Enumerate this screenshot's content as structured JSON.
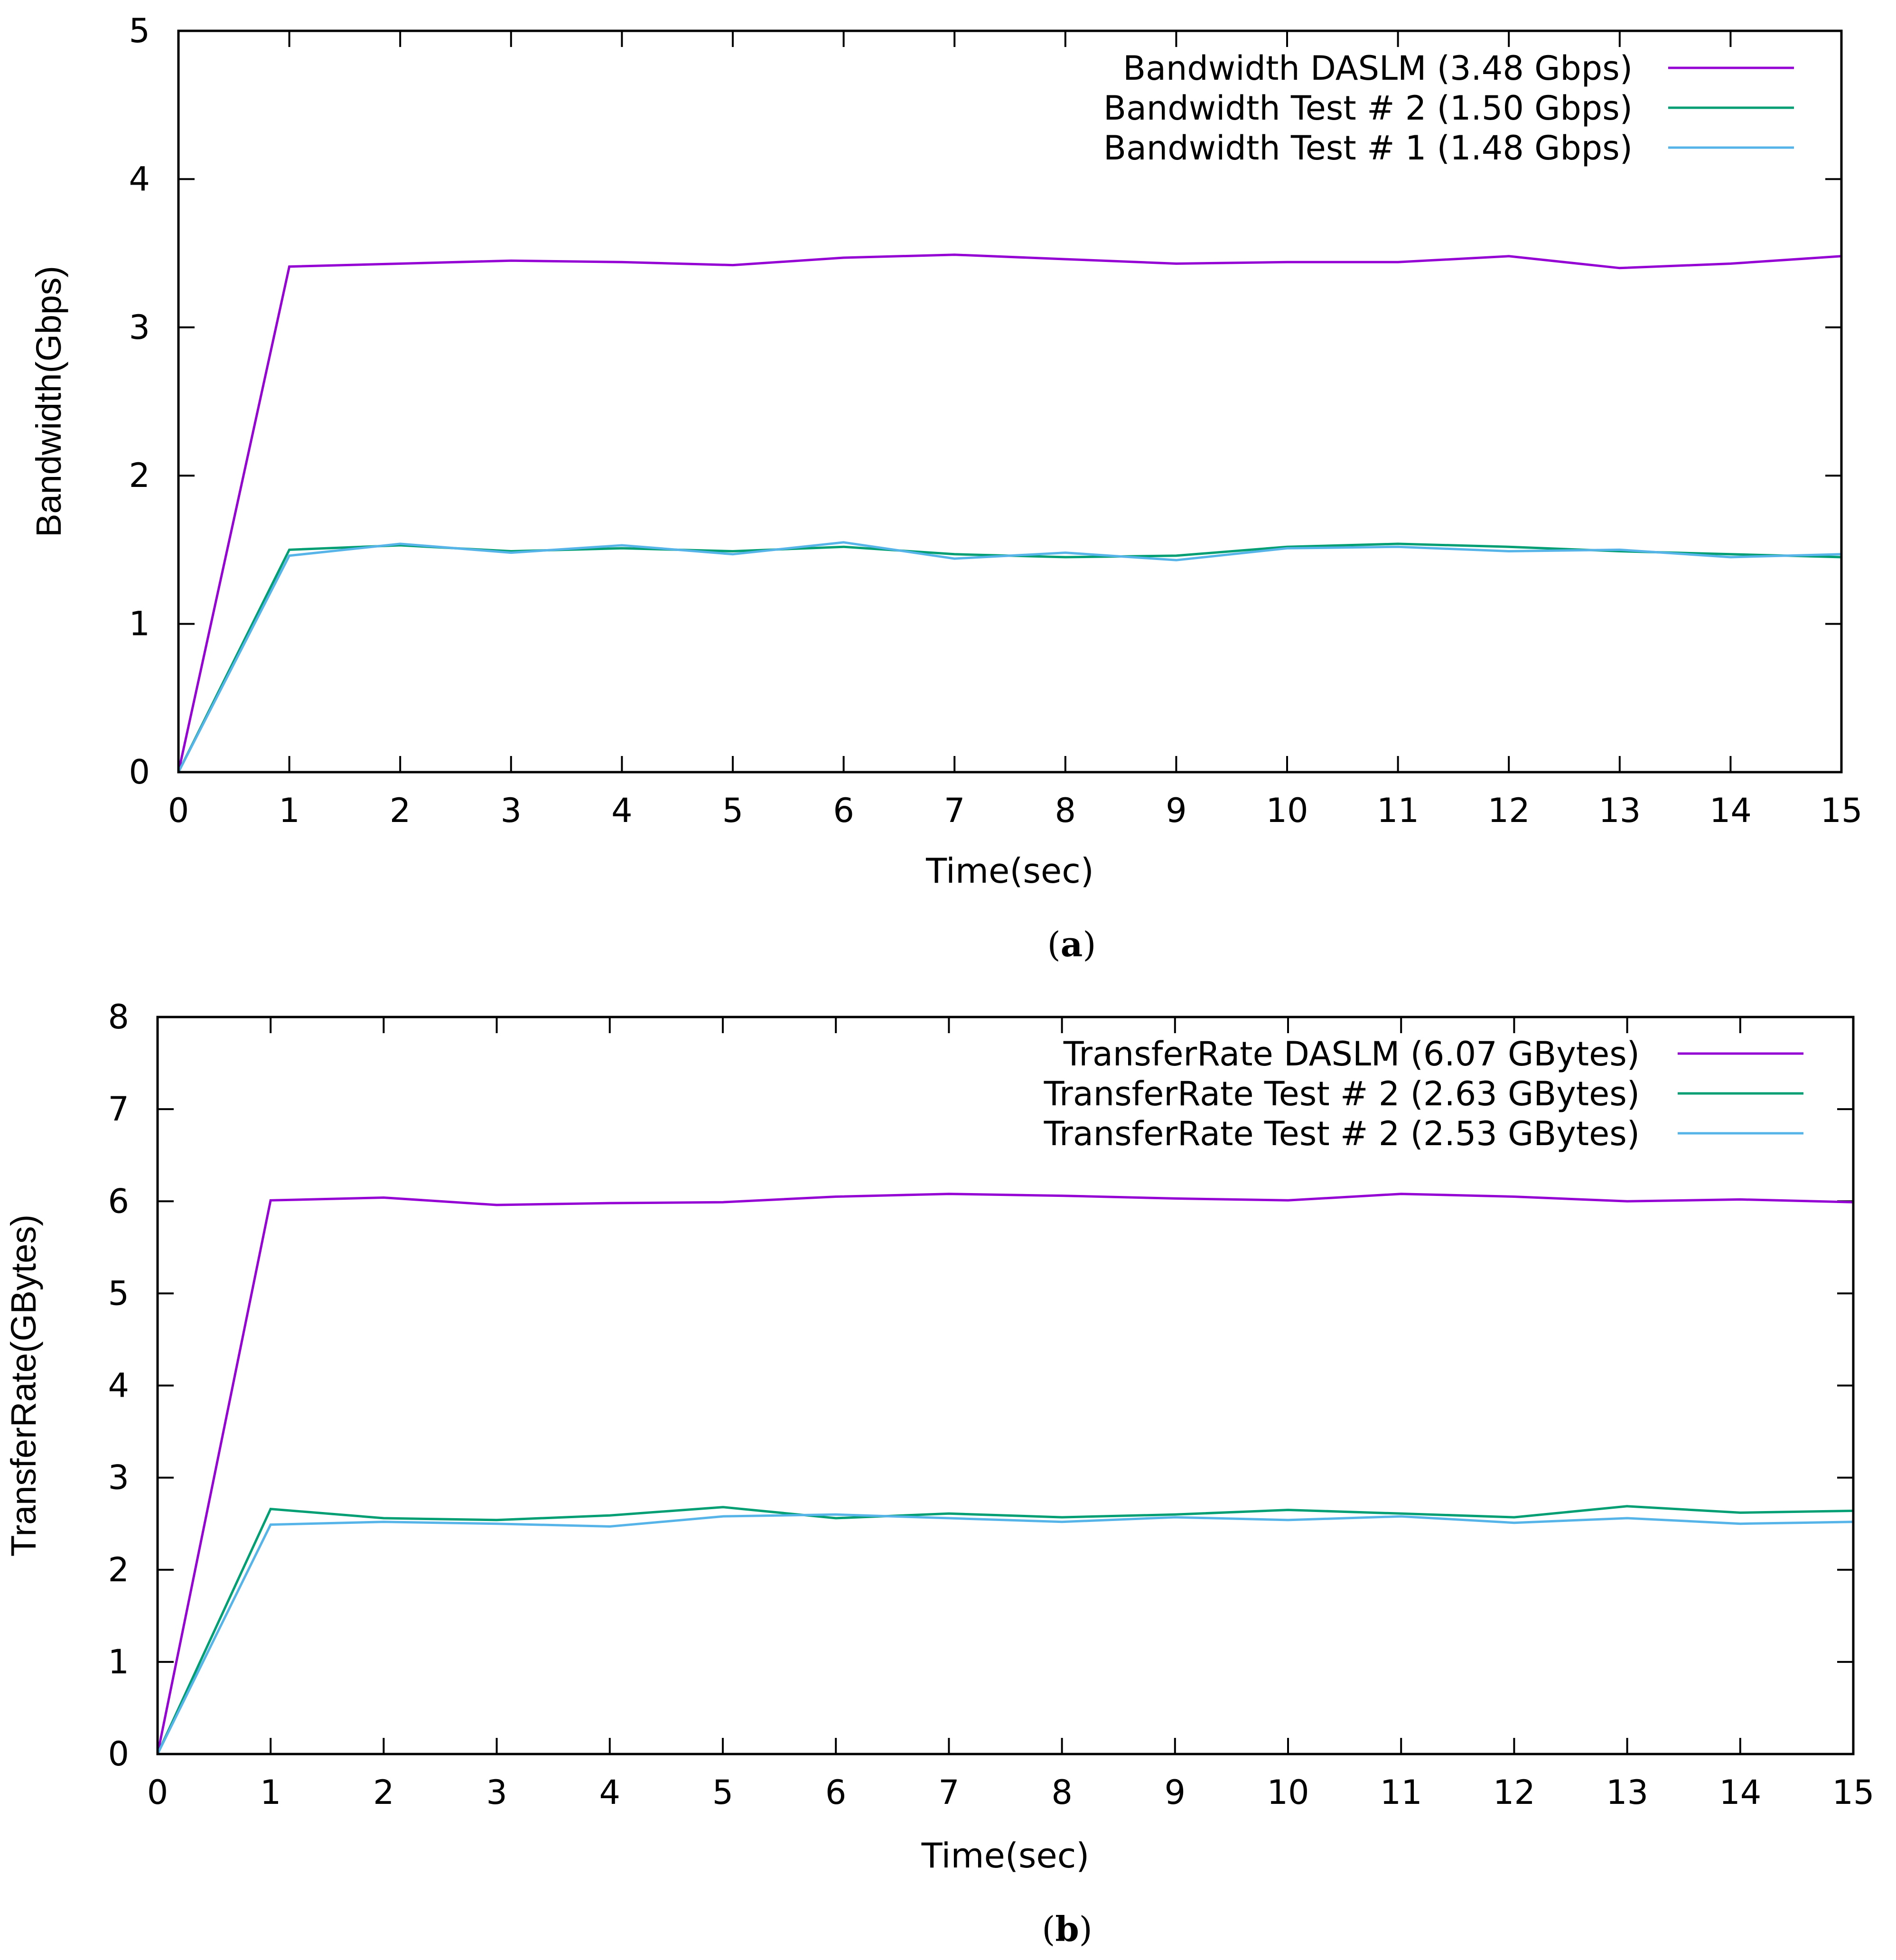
{
  "chart_data": [
    {
      "type": "line",
      "panel": "a",
      "caption": {
        "open": "(",
        "letter": "a",
        "close": ")"
      },
      "title": "",
      "xlabel": "Time(sec)",
      "ylabel": "Bandwidth(Gbps)",
      "xlim": [
        0,
        15
      ],
      "ylim": [
        0,
        5
      ],
      "xticks": [
        0,
        1,
        2,
        3,
        4,
        5,
        6,
        7,
        8,
        9,
        10,
        11,
        12,
        13,
        14,
        15
      ],
      "yticks": [
        0,
        1,
        2,
        3,
        4,
        5
      ],
      "grid": false,
      "legend": "top-right",
      "x": [
        0,
        1,
        2,
        3,
        4,
        5,
        6,
        7,
        8,
        9,
        10,
        11,
        12,
        13,
        14,
        15
      ],
      "series": [
        {
          "name": "Bandwidth DASLM (3.48 Gbps)",
          "color": "#9400d3",
          "values": [
            0,
            3.41,
            3.43,
            3.45,
            3.44,
            3.42,
            3.47,
            3.49,
            3.46,
            3.43,
            3.44,
            3.44,
            3.48,
            3.4,
            3.43,
            3.48
          ]
        },
        {
          "name": "Bandwidth Test # 2 (1.50 Gbps)",
          "color": "#009e73",
          "values": [
            0,
            1.5,
            1.53,
            1.49,
            1.51,
            1.49,
            1.52,
            1.47,
            1.45,
            1.46,
            1.52,
            1.54,
            1.52,
            1.49,
            1.47,
            1.45
          ]
        },
        {
          "name": "Bandwidth Test # 1 (1.48 Gbps)",
          "color": "#56b4e9",
          "values": [
            0,
            1.46,
            1.54,
            1.48,
            1.53,
            1.47,
            1.55,
            1.44,
            1.48,
            1.43,
            1.51,
            1.52,
            1.49,
            1.5,
            1.45,
            1.47
          ]
        }
      ]
    },
    {
      "type": "line",
      "panel": "b",
      "caption": {
        "open": "(",
        "letter": "b",
        "close": ")"
      },
      "title": "",
      "xlabel": "Time(sec)",
      "ylabel": "TransferRate(GBytes)",
      "xlim": [
        0,
        15
      ],
      "ylim": [
        0,
        8
      ],
      "xticks": [
        0,
        1,
        2,
        3,
        4,
        5,
        6,
        7,
        8,
        9,
        10,
        11,
        12,
        13,
        14,
        15
      ],
      "yticks": [
        0,
        1,
        2,
        3,
        4,
        5,
        6,
        7,
        8
      ],
      "grid": false,
      "legend": "top-right",
      "x": [
        0,
        1,
        2,
        3,
        4,
        5,
        6,
        7,
        8,
        9,
        10,
        11,
        12,
        13,
        14,
        15
      ],
      "series": [
        {
          "name": "TransferRate DASLM (6.07 GBytes)",
          "color": "#9400d3",
          "values": [
            0,
            6.01,
            6.04,
            5.96,
            5.98,
            5.99,
            6.05,
            6.08,
            6.06,
            6.03,
            6.01,
            6.08,
            6.05,
            6.0,
            6.02,
            5.99
          ]
        },
        {
          "name": "TransferRate Test # 2 (2.63 GBytes)",
          "color": "#009e73",
          "values": [
            0,
            2.66,
            2.56,
            2.54,
            2.59,
            2.68,
            2.56,
            2.61,
            2.57,
            2.6,
            2.65,
            2.61,
            2.57,
            2.69,
            2.62,
            2.64
          ]
        },
        {
          "name": "TransferRate Test # 2 (2.53 GBytes)",
          "color": "#56b4e9",
          "values": [
            0,
            2.49,
            2.52,
            2.5,
            2.47,
            2.58,
            2.6,
            2.56,
            2.52,
            2.57,
            2.54,
            2.58,
            2.51,
            2.56,
            2.5,
            2.52
          ]
        }
      ]
    }
  ]
}
